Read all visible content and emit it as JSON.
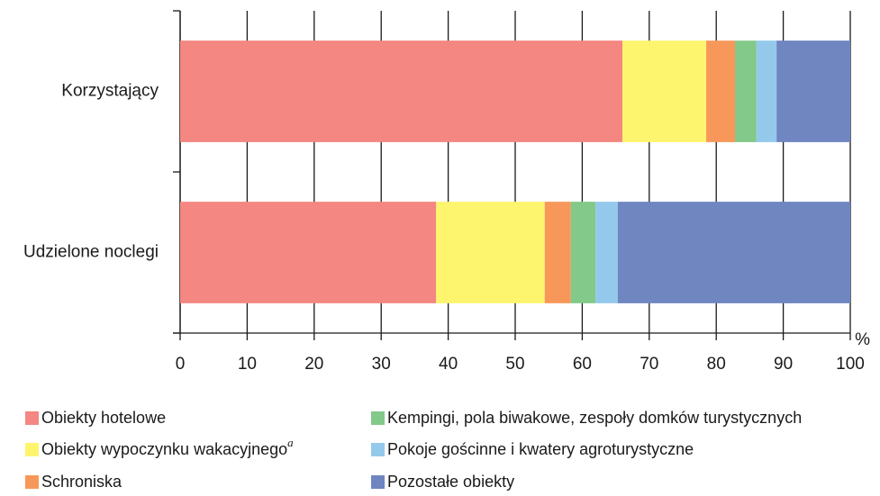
{
  "chart_data": {
    "type": "stacked_barh",
    "categories": [
      "Korzystający",
      "Udzielone noclegi"
    ],
    "series": [
      {
        "name": "Obiekty hotelowe",
        "color": "#f48781",
        "values": [
          66.0,
          38.2
        ]
      },
      {
        "name": "Obiekty wypoczynku wakacyjnego",
        "note_marker": "a",
        "color": "#fef56f",
        "values": [
          12.5,
          16.2
        ]
      },
      {
        "name": "Schroniska",
        "color": "#f7985a",
        "values": [
          4.3,
          3.9
        ]
      },
      {
        "name": "Kempingi, pola biwakowe, zespoły domków turystycznych",
        "color": "#82c98a",
        "values": [
          3.2,
          3.7
        ]
      },
      {
        "name": "Pokoje gościnne i kwatery agroturystyczne",
        "color": "#94c9ec",
        "values": [
          3.0,
          3.3
        ]
      },
      {
        "name": "Pozostałe obiekty",
        "color": "#6f86c1",
        "values": [
          11.0,
          34.7
        ]
      }
    ],
    "xlim": [
      0,
      100
    ],
    "xticks": [
      0,
      10,
      20,
      30,
      40,
      50,
      60,
      70,
      80,
      90,
      100
    ],
    "xlabel": "%",
    "grid": true
  }
}
